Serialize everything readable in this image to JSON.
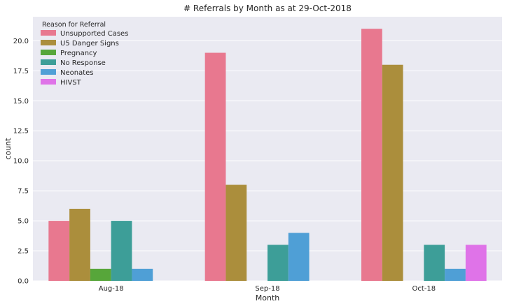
{
  "chart_data": {
    "type": "bar",
    "title": "# Referrals by Month as at 29-Oct-2018",
    "xlabel": "Month",
    "ylabel": "count",
    "ylim": [
      0,
      22
    ],
    "yticks": [
      "0.0",
      "2.5",
      "5.0",
      "7.5",
      "10.0",
      "12.5",
      "15.0",
      "17.5",
      "20.0"
    ],
    "grid": true,
    "legend_title": "Reason for Referral",
    "legend_position": "top-left",
    "categories": [
      "Aug-18",
      "Sep-18",
      "Oct-18"
    ],
    "series": [
      {
        "name": "Unsupported Cases",
        "color": "#e8788f",
        "values": [
          5,
          19,
          21
        ]
      },
      {
        "name": "U5 Danger Signs",
        "color": "#ab8e3c",
        "values": [
          6,
          8,
          18
        ]
      },
      {
        "name": "Pregnancy",
        "color": "#57a63a",
        "values": [
          1,
          0,
          0
        ]
      },
      {
        "name": "No Response",
        "color": "#3d9e98",
        "values": [
          5,
          3,
          3
        ]
      },
      {
        "name": "Neonates",
        "color": "#4f9fd6",
        "values": [
          1,
          4,
          1
        ]
      },
      {
        "name": "HIVST",
        "color": "#df73e8",
        "values": [
          0,
          0,
          3
        ]
      }
    ]
  }
}
